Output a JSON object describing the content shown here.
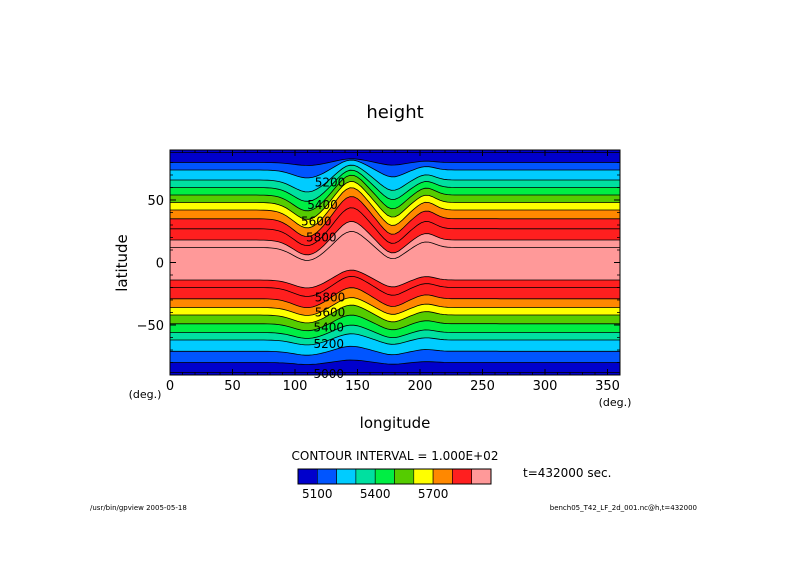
{
  "chart_data": {
    "type": "contour",
    "title": "height",
    "xlabel": "longitude",
    "ylabel": "latitude",
    "x_unit": "(deg.)",
    "y_unit": "(deg.)",
    "xlim": [
      0,
      360
    ],
    "ylim": [
      -90,
      90
    ],
    "x_ticks": [
      0,
      50,
      100,
      150,
      200,
      250,
      300,
      350
    ],
    "y_ticks": [
      -50,
      0,
      50
    ],
    "y_tick_labels": [
      "−50",
      "0",
      "50"
    ],
    "contour_labels": [
      {
        "text": "5200",
        "lon": 128,
        "lat": 64
      },
      {
        "text": "5400",
        "lon": 122,
        "lat": 46
      },
      {
        "text": "5600",
        "lon": 117,
        "lat": 33
      },
      {
        "text": "5800",
        "lon": 121,
        "lat": 20
      },
      {
        "text": "5800",
        "lon": 128,
        "lat": -28
      },
      {
        "text": "5600",
        "lon": 128,
        "lat": -40
      },
      {
        "text": "5400",
        "lon": 127,
        "lat": -52
      },
      {
        "text": "5200",
        "lon": 127,
        "lat": -65
      },
      {
        "text": "5000",
        "lon": 127,
        "lat": -89
      }
    ],
    "contour_interval_text": "CONTOUR INTERVAL = 1.000E+02",
    "time_text": "t=432000 sec.",
    "colorbar": {
      "colors": [
        "#0000cc",
        "#0055ff",
        "#00ccff",
        "#00e0a0",
        "#00ee44",
        "#55cc00",
        "#ffff00",
        "#ff8800",
        "#ff1f1f",
        "#ff9999"
      ],
      "tick_labels": [
        "5100",
        "5400",
        "5700"
      ],
      "tick_positions": [
        1,
        4,
        7
      ]
    },
    "bands_north": [
      {
        "base": 88,
        "amp": 0,
        "color": "#0000cc"
      },
      {
        "base": 80,
        "amp": 3,
        "color": "#0000cc"
      },
      {
        "base": 74,
        "amp": 8,
        "color": "#0055ff"
      },
      {
        "base": 66,
        "amp": 12,
        "color": "#00ccff"
      },
      {
        "base": 60,
        "amp": 14,
        "color": "#00e0a0"
      },
      {
        "base": 54,
        "amp": 16,
        "color": "#00ee44"
      },
      {
        "base": 48,
        "amp": 17,
        "color": "#55cc00"
      },
      {
        "base": 42,
        "amp": 18,
        "color": "#ffff00"
      },
      {
        "base": 35,
        "amp": 18,
        "color": "#ff8800"
      },
      {
        "base": 27,
        "amp": 17,
        "color": "#ff1f1f"
      },
      {
        "base": 18,
        "amp": 15,
        "color": "#ff1f1f"
      },
      {
        "base": 12,
        "amp": 13,
        "color": "#ff9999"
      }
    ],
    "bands_south": [
      {
        "base": -88,
        "amp": 0,
        "color": "#0000cc"
      },
      {
        "base": -80,
        "amp": 2,
        "color": "#0000cc"
      },
      {
        "base": -71,
        "amp": 4,
        "color": "#0055ff"
      },
      {
        "base": -62,
        "amp": 5,
        "color": "#00ccff"
      },
      {
        "base": -56,
        "amp": 6,
        "color": "#00e0a0"
      },
      {
        "base": -49,
        "amp": 7,
        "color": "#00ee44"
      },
      {
        "base": -42,
        "amp": 8,
        "color": "#55cc00"
      },
      {
        "base": -36,
        "amp": 8,
        "color": "#ffff00"
      },
      {
        "base": -29,
        "amp": 9,
        "color": "#ff8800"
      },
      {
        "base": -20,
        "amp": 9,
        "color": "#ff1f1f"
      },
      {
        "base": -14,
        "amp": 8,
        "color": "#ff1f1f"
      }
    ]
  },
  "footer": {
    "left": "/usr/bin/gpview  2005-05-18",
    "right": "bench05_T42_LF_2d_001.nc@h,t=432000"
  }
}
